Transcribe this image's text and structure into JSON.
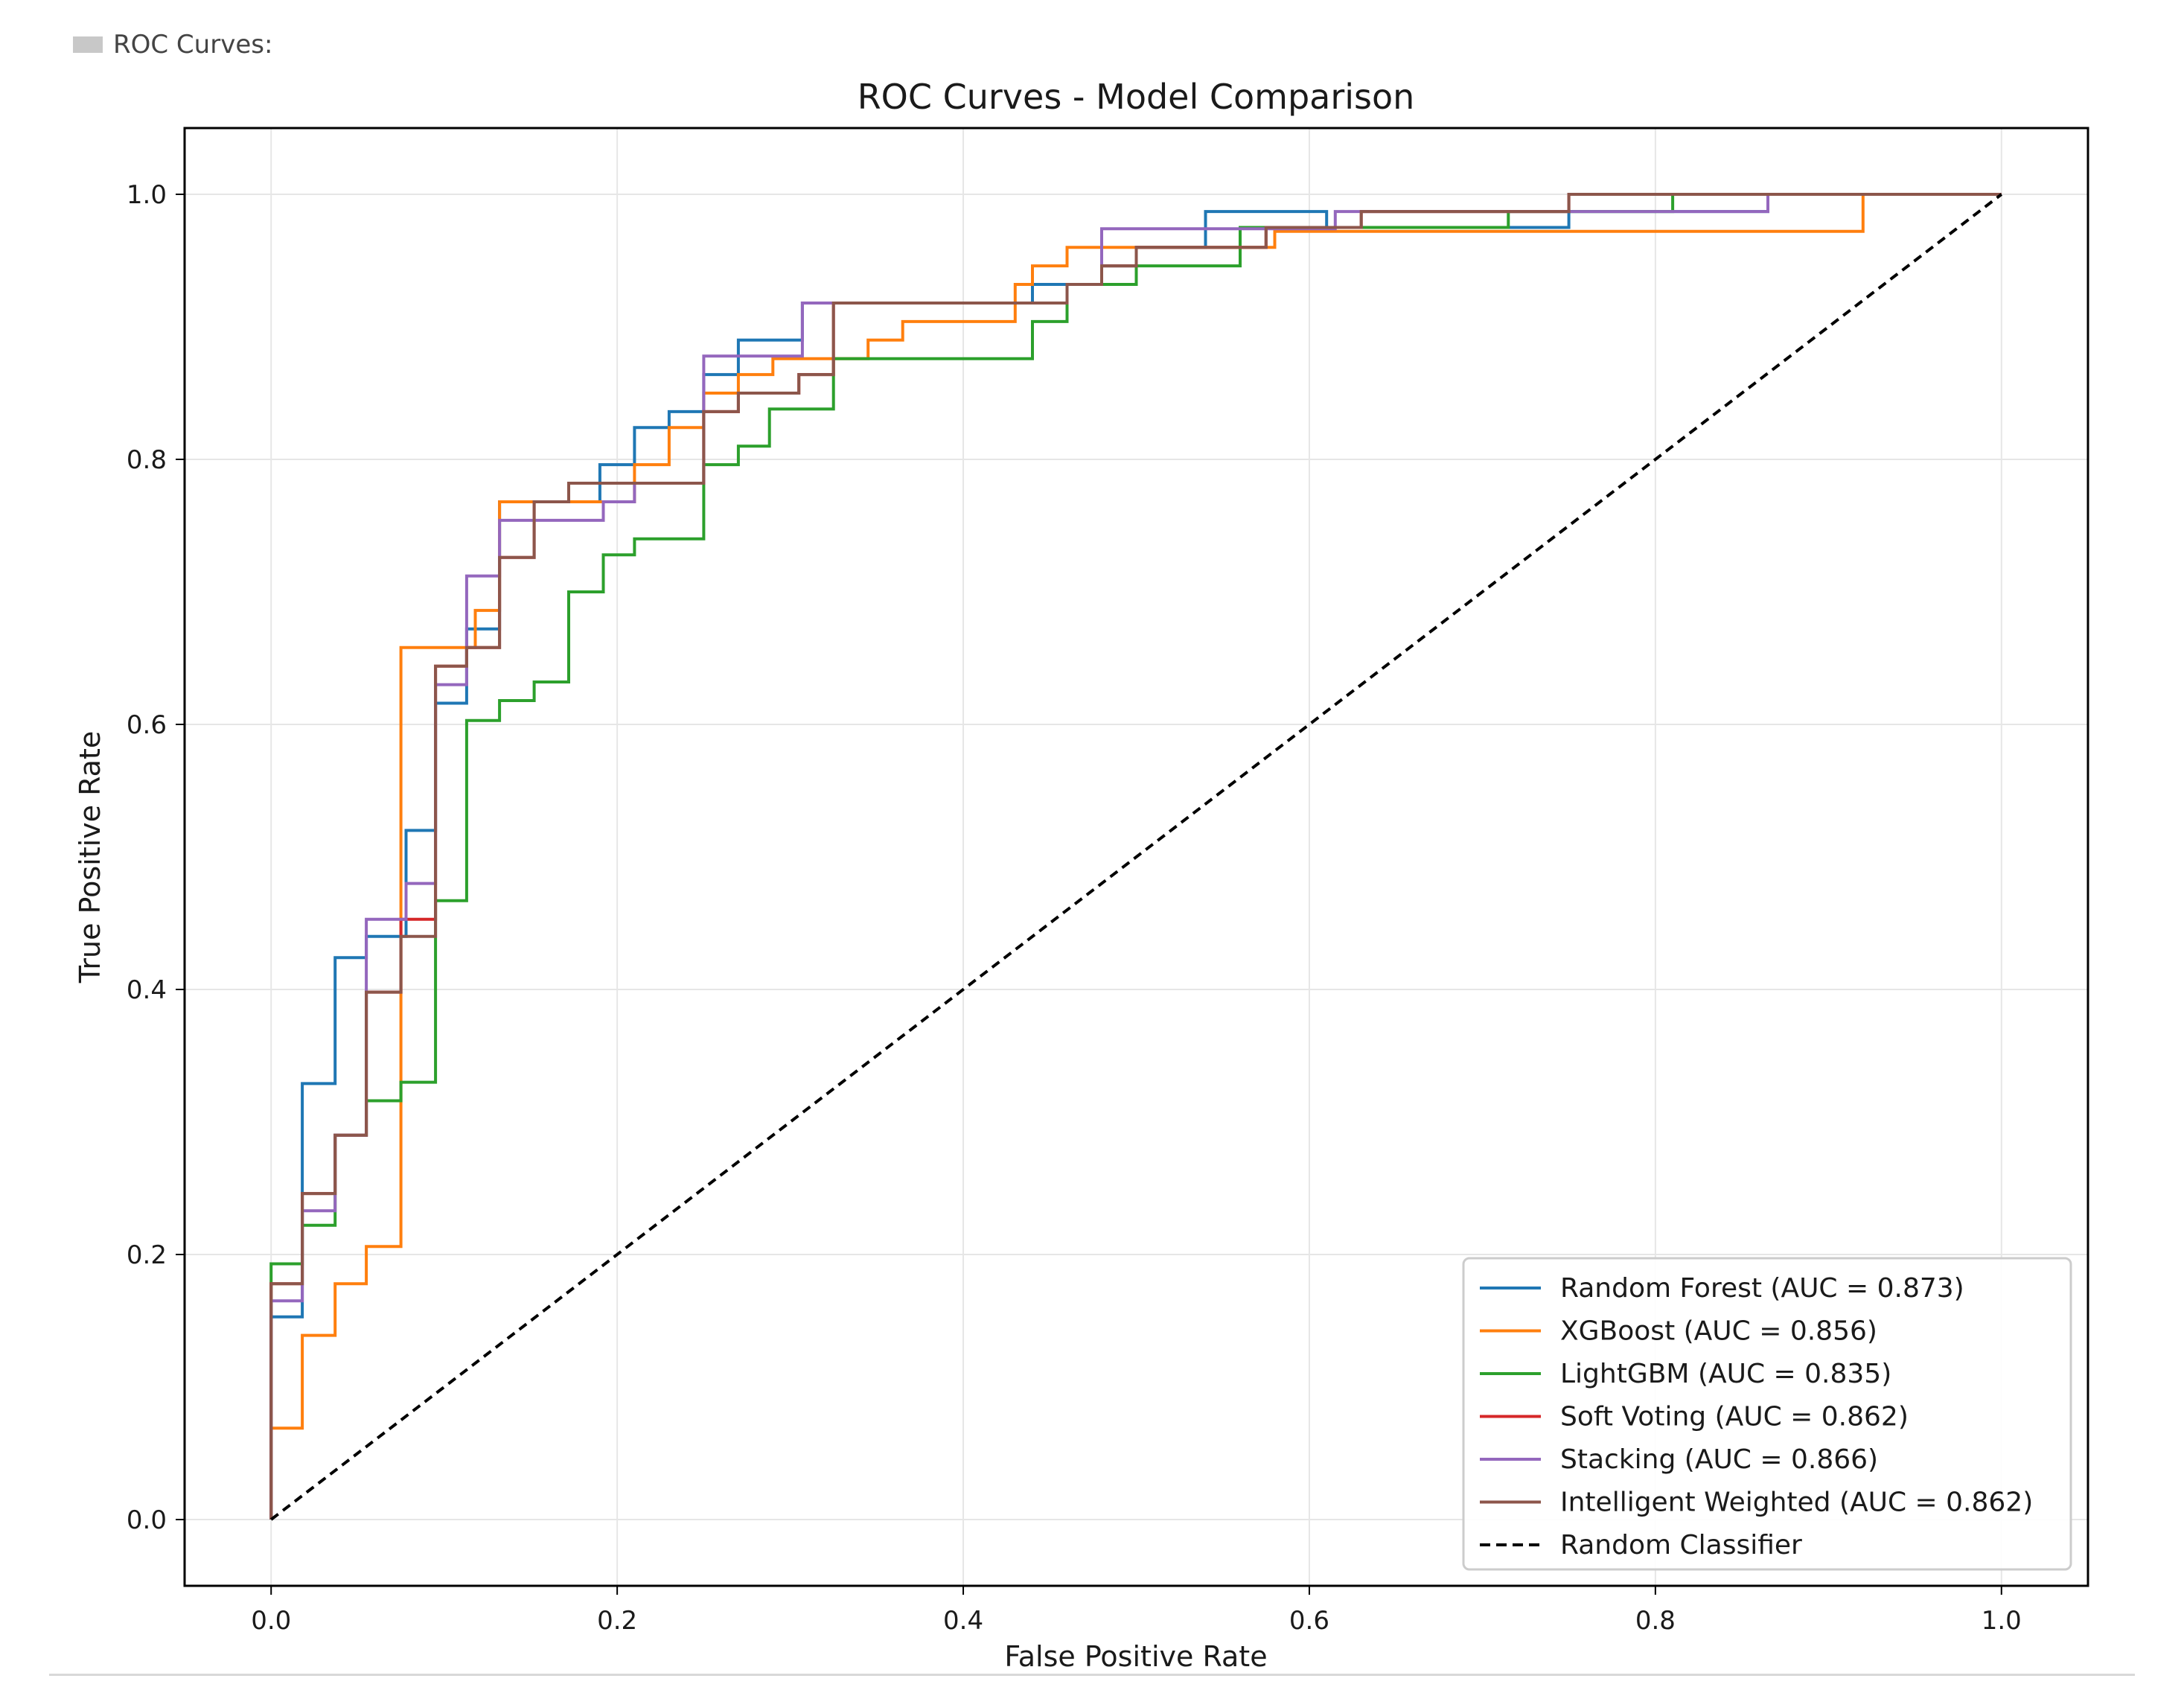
{
  "cell_label": "ROC Curves:",
  "chart_data": {
    "type": "line",
    "title": "ROC Curves - Model Comparison",
    "xlabel": "False Positive Rate",
    "ylabel": "True Positive Rate",
    "xlim": [
      -0.05,
      1.05
    ],
    "ylim": [
      -0.05,
      1.05
    ],
    "xticks": [
      0.0,
      0.2,
      0.4,
      0.6,
      0.8,
      1.0
    ],
    "yticks": [
      0.0,
      0.2,
      0.4,
      0.6,
      0.8,
      1.0
    ],
    "xtick_labels": [
      "0.0",
      "0.2",
      "0.4",
      "0.6",
      "0.8",
      "1.0"
    ],
    "ytick_labels": [
      "0.0",
      "0.2",
      "0.4",
      "0.6",
      "0.8",
      "1.0"
    ],
    "grid": true,
    "legend_position": "lower-right",
    "series": [
      {
        "name": "Random Forest (AUC = 0.873)",
        "color": "#1f77b4",
        "style": "step",
        "points": [
          [
            0.0,
            0.0
          ],
          [
            0.0,
            0.153
          ],
          [
            0.018,
            0.153
          ],
          [
            0.018,
            0.329
          ],
          [
            0.037,
            0.329
          ],
          [
            0.037,
            0.424
          ],
          [
            0.055,
            0.424
          ],
          [
            0.055,
            0.44
          ],
          [
            0.078,
            0.44
          ],
          [
            0.078,
            0.52
          ],
          [
            0.095,
            0.52
          ],
          [
            0.095,
            0.616
          ],
          [
            0.113,
            0.616
          ],
          [
            0.113,
            0.672
          ],
          [
            0.132,
            0.672
          ],
          [
            0.132,
            0.768
          ],
          [
            0.19,
            0.768
          ],
          [
            0.19,
            0.796
          ],
          [
            0.21,
            0.796
          ],
          [
            0.21,
            0.824
          ],
          [
            0.23,
            0.824
          ],
          [
            0.23,
            0.836
          ],
          [
            0.25,
            0.836
          ],
          [
            0.25,
            0.864
          ],
          [
            0.27,
            0.864
          ],
          [
            0.27,
            0.89
          ],
          [
            0.307,
            0.89
          ],
          [
            0.307,
            0.918
          ],
          [
            0.44,
            0.918
          ],
          [
            0.44,
            0.932
          ],
          [
            0.48,
            0.932
          ],
          [
            0.48,
            0.946
          ],
          [
            0.5,
            0.946
          ],
          [
            0.5,
            0.96
          ],
          [
            0.54,
            0.96
          ],
          [
            0.54,
            0.987
          ],
          [
            0.61,
            0.987
          ],
          [
            0.61,
            0.975
          ],
          [
            0.75,
            0.975
          ],
          [
            0.75,
            0.987
          ],
          [
            0.865,
            0.987
          ],
          [
            0.865,
            1.0
          ],
          [
            1.0,
            1.0
          ]
        ]
      },
      {
        "name": "XGBoost (AUC = 0.856)",
        "color": "#ff7f0e",
        "style": "step",
        "points": [
          [
            0.0,
            0.0
          ],
          [
            0.0,
            0.069
          ],
          [
            0.018,
            0.069
          ],
          [
            0.018,
            0.139
          ],
          [
            0.037,
            0.139
          ],
          [
            0.037,
            0.178
          ],
          [
            0.055,
            0.178
          ],
          [
            0.055,
            0.206
          ],
          [
            0.075,
            0.206
          ],
          [
            0.075,
            0.658
          ],
          [
            0.118,
            0.658
          ],
          [
            0.118,
            0.686
          ],
          [
            0.132,
            0.686
          ],
          [
            0.132,
            0.768
          ],
          [
            0.21,
            0.768
          ],
          [
            0.21,
            0.796
          ],
          [
            0.23,
            0.796
          ],
          [
            0.23,
            0.824
          ],
          [
            0.25,
            0.824
          ],
          [
            0.25,
            0.85
          ],
          [
            0.27,
            0.85
          ],
          [
            0.27,
            0.864
          ],
          [
            0.29,
            0.864
          ],
          [
            0.29,
            0.876
          ],
          [
            0.325,
            0.876
          ],
          [
            0.325,
            0.876
          ],
          [
            0.345,
            0.876
          ],
          [
            0.345,
            0.89
          ],
          [
            0.365,
            0.89
          ],
          [
            0.365,
            0.904
          ],
          [
            0.43,
            0.904
          ],
          [
            0.43,
            0.932
          ],
          [
            0.44,
            0.932
          ],
          [
            0.44,
            0.946
          ],
          [
            0.46,
            0.946
          ],
          [
            0.46,
            0.96
          ],
          [
            0.58,
            0.96
          ],
          [
            0.58,
            0.972
          ],
          [
            0.92,
            0.972
          ],
          [
            0.92,
            0.987
          ],
          [
            0.92,
            1.0
          ],
          [
            1.0,
            1.0
          ]
        ]
      },
      {
        "name": "LightGBM (AUC = 0.835)",
        "color": "#2ca02c",
        "style": "step",
        "points": [
          [
            0.0,
            0.0
          ],
          [
            0.0,
            0.193
          ],
          [
            0.018,
            0.193
          ],
          [
            0.018,
            0.222
          ],
          [
            0.037,
            0.222
          ],
          [
            0.037,
            0.29
          ],
          [
            0.055,
            0.29
          ],
          [
            0.055,
            0.316
          ],
          [
            0.075,
            0.316
          ],
          [
            0.075,
            0.33
          ],
          [
            0.095,
            0.33
          ],
          [
            0.095,
            0.467
          ],
          [
            0.113,
            0.467
          ],
          [
            0.113,
            0.603
          ],
          [
            0.132,
            0.603
          ],
          [
            0.132,
            0.618
          ],
          [
            0.152,
            0.618
          ],
          [
            0.152,
            0.632
          ],
          [
            0.172,
            0.632
          ],
          [
            0.172,
            0.7
          ],
          [
            0.192,
            0.7
          ],
          [
            0.192,
            0.728
          ],
          [
            0.21,
            0.728
          ],
          [
            0.21,
            0.74
          ],
          [
            0.25,
            0.74
          ],
          [
            0.25,
            0.796
          ],
          [
            0.27,
            0.796
          ],
          [
            0.27,
            0.81
          ],
          [
            0.288,
            0.81
          ],
          [
            0.288,
            0.838
          ],
          [
            0.325,
            0.838
          ],
          [
            0.325,
            0.876
          ],
          [
            0.44,
            0.876
          ],
          [
            0.44,
            0.904
          ],
          [
            0.46,
            0.904
          ],
          [
            0.46,
            0.932
          ],
          [
            0.5,
            0.932
          ],
          [
            0.5,
            0.946
          ],
          [
            0.56,
            0.946
          ],
          [
            0.56,
            0.975
          ],
          [
            0.715,
            0.975
          ],
          [
            0.715,
            0.987
          ],
          [
            0.81,
            0.987
          ],
          [
            0.81,
            1.0
          ],
          [
            1.0,
            1.0
          ]
        ]
      },
      {
        "name": "Soft Voting (AUC = 0.862)",
        "color": "#d62728",
        "style": "step",
        "points": [
          [
            0.0,
            0.0
          ],
          [
            0.0,
            0.178
          ],
          [
            0.018,
            0.178
          ],
          [
            0.018,
            0.246
          ],
          [
            0.037,
            0.246
          ],
          [
            0.037,
            0.29
          ],
          [
            0.055,
            0.29
          ],
          [
            0.055,
            0.398
          ],
          [
            0.075,
            0.398
          ],
          [
            0.075,
            0.453
          ],
          [
            0.095,
            0.453
          ],
          [
            0.095,
            0.644
          ],
          [
            0.113,
            0.644
          ],
          [
            0.113,
            0.658
          ],
          [
            0.132,
            0.658
          ],
          [
            0.132,
            0.726
          ],
          [
            0.152,
            0.726
          ],
          [
            0.152,
            0.768
          ],
          [
            0.172,
            0.768
          ],
          [
            0.172,
            0.782
          ],
          [
            0.25,
            0.782
          ],
          [
            0.25,
            0.836
          ],
          [
            0.27,
            0.836
          ],
          [
            0.27,
            0.85
          ],
          [
            0.305,
            0.85
          ],
          [
            0.305,
            0.864
          ],
          [
            0.325,
            0.864
          ],
          [
            0.325,
            0.918
          ],
          [
            0.46,
            0.918
          ],
          [
            0.46,
            0.932
          ],
          [
            0.48,
            0.932
          ],
          [
            0.48,
            0.946
          ],
          [
            0.5,
            0.946
          ],
          [
            0.5,
            0.96
          ],
          [
            0.575,
            0.96
          ],
          [
            0.575,
            0.975
          ],
          [
            0.63,
            0.975
          ],
          [
            0.63,
            0.987
          ],
          [
            0.75,
            0.987
          ],
          [
            0.75,
            1.0
          ],
          [
            1.0,
            1.0
          ]
        ]
      },
      {
        "name": "Stacking (AUC = 0.866)",
        "color": "#9467bd",
        "style": "step",
        "points": [
          [
            0.0,
            0.0
          ],
          [
            0.0,
            0.165
          ],
          [
            0.018,
            0.165
          ],
          [
            0.018,
            0.233
          ],
          [
            0.037,
            0.233
          ],
          [
            0.037,
            0.29
          ],
          [
            0.055,
            0.29
          ],
          [
            0.055,
            0.453
          ],
          [
            0.078,
            0.453
          ],
          [
            0.078,
            0.48
          ],
          [
            0.095,
            0.48
          ],
          [
            0.095,
            0.63
          ],
          [
            0.113,
            0.63
          ],
          [
            0.113,
            0.712
          ],
          [
            0.132,
            0.712
          ],
          [
            0.132,
            0.754
          ],
          [
            0.192,
            0.754
          ],
          [
            0.192,
            0.768
          ],
          [
            0.21,
            0.768
          ],
          [
            0.21,
            0.782
          ],
          [
            0.25,
            0.782
          ],
          [
            0.25,
            0.878
          ],
          [
            0.307,
            0.878
          ],
          [
            0.307,
            0.918
          ],
          [
            0.46,
            0.918
          ],
          [
            0.46,
            0.932
          ],
          [
            0.48,
            0.932
          ],
          [
            0.48,
            0.974
          ],
          [
            0.615,
            0.974
          ],
          [
            0.615,
            0.987
          ],
          [
            0.865,
            0.987
          ],
          [
            0.865,
            1.0
          ],
          [
            1.0,
            1.0
          ]
        ]
      },
      {
        "name": "Intelligent Weighted (AUC = 0.862)",
        "color": "#8c564b",
        "style": "step",
        "points": [
          [
            0.0,
            0.0
          ],
          [
            0.0,
            0.178
          ],
          [
            0.018,
            0.178
          ],
          [
            0.018,
            0.246
          ],
          [
            0.037,
            0.246
          ],
          [
            0.037,
            0.29
          ],
          [
            0.055,
            0.29
          ],
          [
            0.055,
            0.398
          ],
          [
            0.075,
            0.398
          ],
          [
            0.075,
            0.44
          ],
          [
            0.095,
            0.44
          ],
          [
            0.095,
            0.644
          ],
          [
            0.113,
            0.644
          ],
          [
            0.113,
            0.658
          ],
          [
            0.132,
            0.658
          ],
          [
            0.132,
            0.726
          ],
          [
            0.152,
            0.726
          ],
          [
            0.152,
            0.768
          ],
          [
            0.172,
            0.768
          ],
          [
            0.172,
            0.782
          ],
          [
            0.25,
            0.782
          ],
          [
            0.25,
            0.836
          ],
          [
            0.27,
            0.836
          ],
          [
            0.27,
            0.85
          ],
          [
            0.305,
            0.85
          ],
          [
            0.305,
            0.864
          ],
          [
            0.325,
            0.864
          ],
          [
            0.325,
            0.918
          ],
          [
            0.46,
            0.918
          ],
          [
            0.46,
            0.932
          ],
          [
            0.48,
            0.932
          ],
          [
            0.48,
            0.946
          ],
          [
            0.5,
            0.946
          ],
          [
            0.5,
            0.96
          ],
          [
            0.575,
            0.96
          ],
          [
            0.575,
            0.975
          ],
          [
            0.63,
            0.975
          ],
          [
            0.63,
            0.987
          ],
          [
            0.75,
            0.987
          ],
          [
            0.75,
            1.0
          ],
          [
            1.0,
            1.0
          ]
        ]
      },
      {
        "name": "Random Classifier",
        "color": "#000000",
        "style": "dashed",
        "points": [
          [
            0.0,
            0.0
          ],
          [
            1.0,
            1.0
          ]
        ]
      }
    ]
  }
}
